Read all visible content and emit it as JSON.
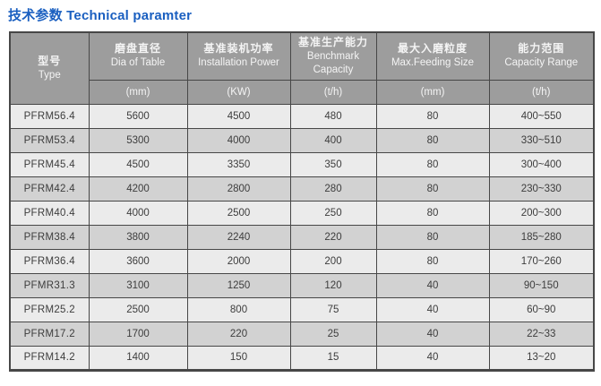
{
  "title": "技术参数 Technical paramter",
  "colors": {
    "title_blue": "#1a5fc0",
    "header_bg": "#9d9d9d",
    "row_light": "#ebebeb",
    "row_dark": "#d2d2d2",
    "border": "#474747"
  },
  "table": {
    "columns": [
      {
        "zh": "型号",
        "en": "Type",
        "unit": ""
      },
      {
        "zh": "磨盘直径",
        "en": "Dia of Table",
        "unit": "(mm)"
      },
      {
        "zh": "基准装机功率",
        "en": "Installation Power",
        "unit": "(KW)"
      },
      {
        "zh": "基准生产能力",
        "en": "Benchmark Capacity",
        "unit": "(t/h)"
      },
      {
        "zh": "最大入磨粒度",
        "en": "Max.Feeding Size",
        "unit": "(mm)"
      },
      {
        "zh": "能力范围",
        "en": "Capacity Range",
        "unit": "(t/h)"
      }
    ],
    "rows": [
      [
        "PFRM56.4",
        "5600",
        "4500",
        "480",
        "80",
        "400~550"
      ],
      [
        "PFRM53.4",
        "5300",
        "4000",
        "400",
        "80",
        "330~510"
      ],
      [
        "PFRM45.4",
        "4500",
        "3350",
        "350",
        "80",
        "300~400"
      ],
      [
        "PFRM42.4",
        "4200",
        "2800",
        "280",
        "80",
        "230~330"
      ],
      [
        "PFRM40.4",
        "4000",
        "2500",
        "250",
        "80",
        "200~300"
      ],
      [
        "PFRM38.4",
        "3800",
        "2240",
        "220",
        "80",
        "185~280"
      ],
      [
        "PFRM36.4",
        "3600",
        "2000",
        "200",
        "80",
        "170~260"
      ],
      [
        "PFMR31.3",
        "3100",
        "1250",
        "120",
        "40",
        "90~150"
      ],
      [
        "PFRM25.2",
        "2500",
        "800",
        "75",
        "40",
        "60~90"
      ],
      [
        "PFRM17.2",
        "1700",
        "220",
        "25",
        "40",
        "22~33"
      ],
      [
        "PFRM14.2",
        "1400",
        "150",
        "15",
        "40",
        "13~20"
      ]
    ]
  }
}
